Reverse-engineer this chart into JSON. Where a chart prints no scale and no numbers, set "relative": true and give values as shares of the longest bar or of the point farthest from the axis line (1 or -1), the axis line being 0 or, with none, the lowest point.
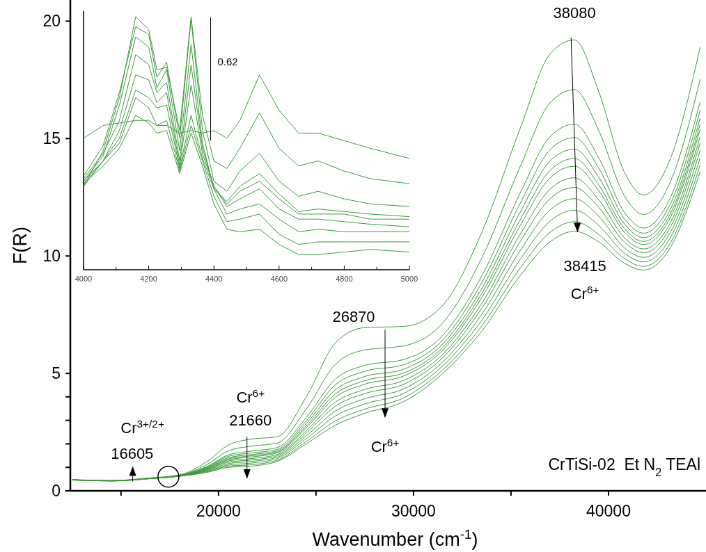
{
  "chart_data": [
    {
      "type": "line",
      "xlabel": "Wavenumber (cm$^{-1}$)",
      "ylabel": "F(R)",
      "color": "#3a9b3a",
      "x": [
        12500,
        14500,
        16500,
        18000,
        19500,
        20500,
        21660,
        23000,
        24500,
        26000,
        27500,
        29500,
        31500,
        33500,
        35500,
        37000,
        38250,
        39500,
        40800,
        41800,
        43200,
        44700
      ],
      "series": [
        {
          "values": [
            0.48,
            0.44,
            0.55,
            0.68,
            1.3,
            1.95,
            2.2,
            2.3,
            4.0,
            6.3,
            6.95,
            7.0,
            7.9,
            11.0,
            15.5,
            18.6,
            19.2,
            17.0,
            13.6,
            12.6,
            14.2,
            18.9
          ]
        },
        {
          "values": [
            0.47,
            0.43,
            0.54,
            0.66,
            1.17,
            1.7,
            1.9,
            2.03,
            3.48,
            5.39,
            6.0,
            6.17,
            7.15,
            9.91,
            13.86,
            16.52,
            17.08,
            15.34,
            12.59,
            11.77,
            13.21,
            17.52
          ]
        },
        {
          "values": [
            0.47,
            0.43,
            0.54,
            0.65,
            1.08,
            1.53,
            1.69,
            1.84,
            3.12,
            4.76,
            5.34,
            5.59,
            6.62,
            9.15,
            12.73,
            15.08,
            15.61,
            14.18,
            11.88,
            11.19,
            12.53,
            16.57
          ]
        },
        {
          "values": [
            0.47,
            0.43,
            0.53,
            0.65,
            1.05,
            1.47,
            1.61,
            1.76,
            2.98,
            4.52,
            5.09,
            5.37,
            6.42,
            8.86,
            12.29,
            14.52,
            15.04,
            13.74,
            11.61,
            10.97,
            12.26,
            16.2
          ]
        },
        {
          "values": [
            0.47,
            0.43,
            0.53,
            0.65,
            1.02,
            1.41,
            1.54,
            1.7,
            2.86,
            4.31,
            4.87,
            5.18,
            6.25,
            8.61,
            11.91,
            14.04,
            14.55,
            13.35,
            11.38,
            10.78,
            12.03,
            15.88
          ]
        },
        {
          "values": [
            0.47,
            0.43,
            0.53,
            0.64,
            0.99,
            1.36,
            1.49,
            1.65,
            2.76,
            4.13,
            4.69,
            5.02,
            6.1,
            8.4,
            11.59,
            13.64,
            14.15,
            13.03,
            11.18,
            10.62,
            11.84,
            15.61
          ]
        },
        {
          "values": [
            0.47,
            0.43,
            0.53,
            0.64,
            0.97,
            1.32,
            1.44,
            1.61,
            2.68,
            3.99,
            4.54,
            4.89,
            5.99,
            8.23,
            11.34,
            13.32,
            13.82,
            12.78,
            11.03,
            10.49,
            11.69,
            15.4
          ]
        },
        {
          "values": [
            0.47,
            0.43,
            0.53,
            0.64,
            0.94,
            1.27,
            1.37,
            1.54,
            2.56,
            3.78,
            4.32,
            4.7,
            5.81,
            7.98,
            10.96,
            12.84,
            13.33,
            12.39,
            10.79,
            10.3,
            11.46,
            15.08
          ]
        },
        {
          "values": [
            0.47,
            0.43,
            0.53,
            0.63,
            0.92,
            1.22,
            1.31,
            1.49,
            2.46,
            3.61,
            4.14,
            4.54,
            5.67,
            7.77,
            10.65,
            12.44,
            12.92,
            12.07,
            10.6,
            10.14,
            11.27,
            14.82
          ]
        },
        {
          "values": [
            0.46,
            0.42,
            0.52,
            0.63,
            0.89,
            1.16,
            1.25,
            1.43,
            2.34,
            3.4,
            3.92,
            4.34,
            5.49,
            7.51,
            10.27,
            11.96,
            12.44,
            11.69,
            10.36,
            9.94,
            11.05,
            14.5
          ]
        },
        {
          "values": [
            0.46,
            0.42,
            0.52,
            0.63,
            0.86,
            1.1,
            1.18,
            1.37,
            2.22,
            3.19,
            3.7,
            4.15,
            5.32,
            7.26,
            9.89,
            11.48,
            11.95,
            11.3,
            10.13,
            9.75,
            10.82,
            14.18
          ]
        },
        {
          "values": [
            0.46,
            0.42,
            0.52,
            0.62,
            0.83,
            1.05,
            1.11,
            1.3,
            2.1,
            2.98,
            3.48,
            3.96,
            5.15,
            7.01,
            9.52,
            11.0,
            11.46,
            10.92,
            9.9,
            9.56,
            10.59,
            13.87
          ]
        },
        {
          "values": [
            0.46,
            0.42,
            0.52,
            0.62,
            0.8,
            1.0,
            1.05,
            1.25,
            2.0,
            2.8,
            3.3,
            3.8,
            5.0,
            6.8,
            9.2,
            10.6,
            11.05,
            10.6,
            9.7,
            9.4,
            10.4,
            13.6
          ]
        }
      ],
      "xlim": [
        12400,
        45000
      ],
      "xticks": [
        {
          "value": 15000,
          "label": null
        },
        20000,
        {
          "value": 25000,
          "label": null
        },
        30000,
        {
          "value": 35000,
          "label": null
        },
        40000
      ],
      "ylim": [
        0,
        20.9
      ],
      "yticks": [
        0,
        {
          "value": 1,
          "label": null
        },
        {
          "value": 2,
          "label": null
        },
        {
          "value": 3,
          "label": null
        },
        {
          "value": 4,
          "label": null
        },
        5,
        10,
        15,
        20
      ],
      "annotations": [
        {
          "text": "38080",
          "x": 38080,
          "y": 19.3
        },
        "38415",
        "Cr$^{6+}$",
        {
          "text": "26870",
          "x": 28540,
          "y": 6.85
        },
        "Cr$^{6+}$",
        "Cr$^{6+}$",
        {
          "text": "21660",
          "x": 21460,
          "y": 2.3
        },
        "Cr$^{3+/2+}$",
        "16605",
        "CrTiSi-02  Et N$_{2}$ TEAl"
      ]
    },
    {
      "type": "line",
      "relative": true,
      "color": "#3a9b3a",
      "x": [
        4000,
        4060,
        4110,
        4160,
        4200,
        4225,
        4255,
        4295,
        4330,
        4365,
        4400,
        4440,
        4480,
        4540,
        4600,
        4660,
        4720,
        4800,
        4880,
        5000
      ],
      "series": [
        {
          "values": [
            0.52,
            0.57,
            0.58,
            0.59,
            0.59,
            0.57,
            0.57,
            0.54,
            0.55,
            0.54,
            0.55,
            0.52,
            0.59,
            0.77,
            0.63,
            0.54,
            0.54,
            0.51,
            0.48,
            0.44
          ]
        },
        {
          "values": [
            0.33,
            0.47,
            0.68,
            1.0,
            0.95,
            0.79,
            0.8,
            0.55,
            1.0,
            0.61,
            0.43,
            0.4,
            0.48,
            0.62,
            0.48,
            0.41,
            0.43,
            0.39,
            0.36,
            0.34
          ]
        },
        {
          "values": [
            0.37,
            0.49,
            0.7,
            0.96,
            0.93,
            0.76,
            0.82,
            0.52,
            0.99,
            0.55,
            0.35,
            0.31,
            0.39,
            0.46,
            0.35,
            0.29,
            0.31,
            0.28,
            0.26,
            0.25
          ]
        },
        {
          "values": [
            0.35,
            0.45,
            0.65,
            0.92,
            0.88,
            0.72,
            0.79,
            0.47,
            0.89,
            0.5,
            0.32,
            0.27,
            0.33,
            0.38,
            0.3,
            0.23,
            0.24,
            0.23,
            0.22,
            0.21
          ]
        },
        {
          "values": [
            0.36,
            0.46,
            0.59,
            0.85,
            0.81,
            0.7,
            0.74,
            0.43,
            0.81,
            0.48,
            0.33,
            0.26,
            0.31,
            0.35,
            0.28,
            0.22,
            0.22,
            0.22,
            0.2,
            0.2
          ]
        },
        {
          "values": [
            0.34,
            0.43,
            0.55,
            0.77,
            0.75,
            0.66,
            0.7,
            0.41,
            0.73,
            0.46,
            0.33,
            0.25,
            0.28,
            0.32,
            0.24,
            0.2,
            0.2,
            0.19,
            0.18,
            0.17
          ]
        },
        {
          "values": [
            0.33,
            0.43,
            0.52,
            0.71,
            0.68,
            0.64,
            0.65,
            0.4,
            0.61,
            0.44,
            0.32,
            0.22,
            0.24,
            0.26,
            0.2,
            0.15,
            0.16,
            0.15,
            0.15,
            0.15
          ]
        },
        {
          "values": [
            0.35,
            0.43,
            0.5,
            0.68,
            0.64,
            0.57,
            0.59,
            0.39,
            0.57,
            0.43,
            0.29,
            0.19,
            0.2,
            0.22,
            0.14,
            0.1,
            0.11,
            0.11,
            0.11,
            0.11
          ]
        },
        {
          "values": [
            0.34,
            0.41,
            0.48,
            0.61,
            0.58,
            0.54,
            0.55,
            0.38,
            0.54,
            0.41,
            0.26,
            0.16,
            0.15,
            0.16,
            0.1,
            0.06,
            0.06,
            0.07,
            0.08,
            0.07
          ]
        }
      ],
      "xlim": [
        4000,
        5000
      ],
      "xticks": [
        4000,
        {
          "value": 4100,
          "label": null
        },
        4200,
        {
          "value": 4300,
          "label": null
        },
        4400,
        {
          "value": 4500,
          "label": null
        },
        4600,
        {
          "value": 4700,
          "label": null
        },
        4800,
        {
          "value": 4900,
          "label": null
        },
        5000
      ],
      "annotations": [
        "0.62"
      ]
    }
  ]
}
